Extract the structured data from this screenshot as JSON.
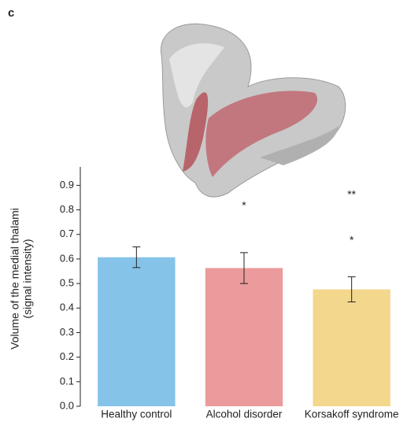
{
  "chart_data": {
    "type": "bar",
    "panel_label": "c",
    "ylabel": [
      "Volume of the medial thalami",
      "(signal intensity)"
    ],
    "categories": [
      "Healthy control",
      "Alcohol disorder",
      "Korsakoff syndrome"
    ],
    "values": [
      0.607,
      0.563,
      0.476
    ],
    "errors": [
      0.042,
      0.063,
      0.051
    ],
    "colors": [
      "#86c3e8",
      "#eb9b9b",
      "#f3d78c"
    ],
    "ylim": [
      0,
      0.975
    ],
    "yticks": [
      {
        "value": 0,
        "label": "0.0"
      },
      0.1,
      0.2,
      0.3,
      0.4,
      0.5,
      0.6,
      0.7,
      0.8,
      0.9
    ],
    "annotations": [
      "*",
      "**",
      "*"
    ]
  }
}
